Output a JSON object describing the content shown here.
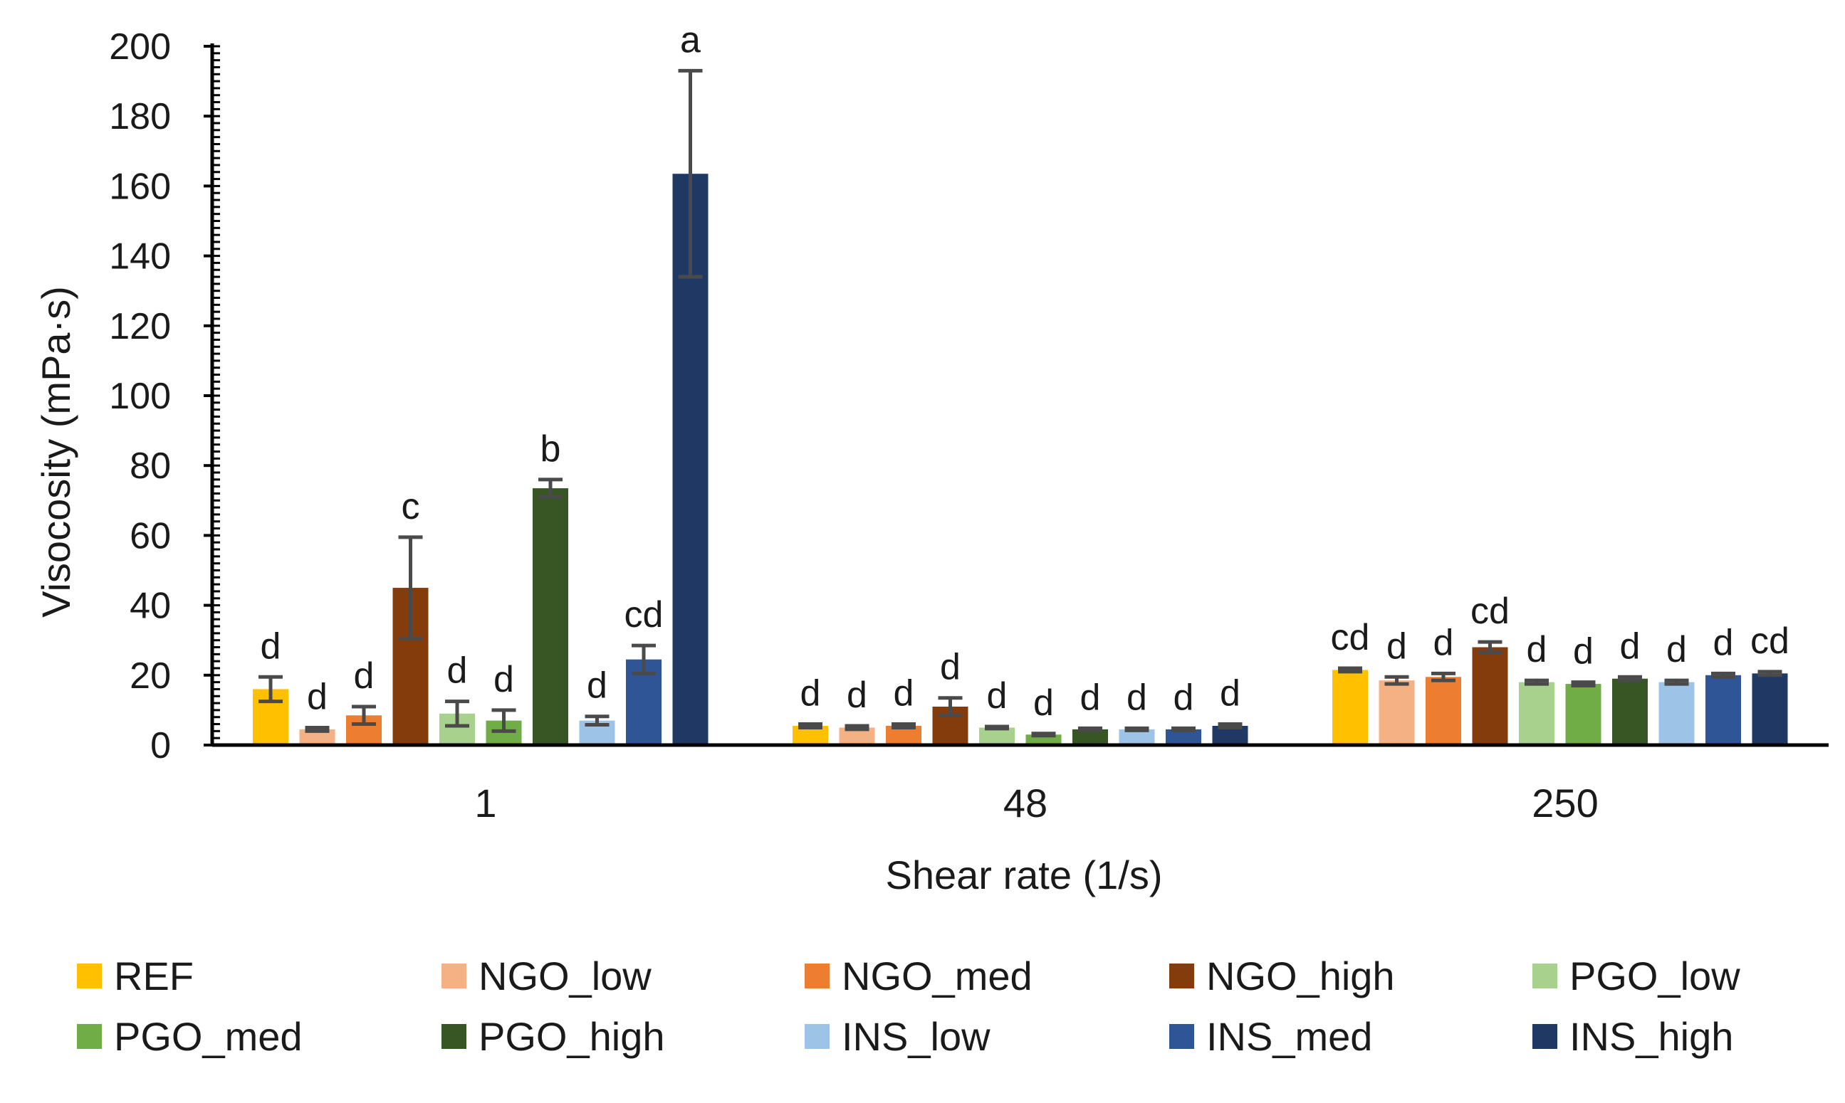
{
  "chart_data": {
    "type": "bar",
    "title": "",
    "xlabel": "Shear rate (1/s)",
    "ylabel": "Visocosity (mPa·s)",
    "ylim": [
      0,
      200
    ],
    "yticks": [
      0,
      20,
      40,
      60,
      80,
      100,
      120,
      140,
      160,
      180,
      200
    ],
    "categories": [
      "1",
      "48",
      "250"
    ],
    "legend_position": "bottom",
    "series": [
      {
        "name": "REF",
        "color": "#FFC000",
        "values": [
          16,
          5.5,
          21.5
        ],
        "errors": [
          3.5,
          0.5,
          0.5
        ],
        "labels": [
          "d",
          "d",
          "cd"
        ]
      },
      {
        "name": "NGO_low",
        "color": "#F4B183",
        "values": [
          4.5,
          5,
          18.5
        ],
        "errors": [
          0.5,
          0.5,
          1
        ],
        "labels": [
          "d",
          "d",
          "d"
        ]
      },
      {
        "name": "NGO_med",
        "color": "#ED7D31",
        "values": [
          8.5,
          5.5,
          19.5
        ],
        "errors": [
          2.5,
          0.5,
          1
        ],
        "labels": [
          "d",
          "d",
          "d"
        ]
      },
      {
        "name": "NGO_high",
        "color": "#843C0C",
        "values": [
          45,
          11,
          28
        ],
        "errors": [
          14.5,
          2.5,
          1.5
        ],
        "labels": [
          "c",
          "d",
          "cd"
        ]
      },
      {
        "name": "PGO_low",
        "color": "#A9D18E",
        "values": [
          9,
          5,
          18
        ],
        "errors": [
          3.5,
          0.3,
          0.5
        ],
        "labels": [
          "d",
          "d",
          "d"
        ]
      },
      {
        "name": "PGO_med",
        "color": "#70AD47",
        "values": [
          7,
          3,
          17.5
        ],
        "errors": [
          3,
          0.3,
          0.5
        ],
        "labels": [
          "d",
          "d",
          "d"
        ]
      },
      {
        "name": "PGO_high",
        "color": "#375623",
        "values": [
          73.5,
          4.5,
          19
        ],
        "errors": [
          2.5,
          0.3,
          0.5
        ],
        "labels": [
          "b",
          "d",
          "d"
        ]
      },
      {
        "name": "INS_low",
        "color": "#9DC3E6",
        "values": [
          7,
          4.5,
          18
        ],
        "errors": [
          1.2,
          0.3,
          0.5
        ],
        "labels": [
          "d",
          "d",
          "d"
        ]
      },
      {
        "name": "INS_med",
        "color": "#2F5597",
        "values": [
          24.5,
          4.5,
          20
        ],
        "errors": [
          4,
          0.3,
          0.5
        ],
        "labels": [
          "cd",
          "d",
          "d"
        ]
      },
      {
        "name": "INS_high",
        "color": "#203864",
        "values": [
          163.5,
          5.5,
          20.5
        ],
        "errors": [
          29.5,
          0.5,
          0.5
        ],
        "labels": [
          "a",
          "d",
          "cd"
        ]
      }
    ]
  }
}
